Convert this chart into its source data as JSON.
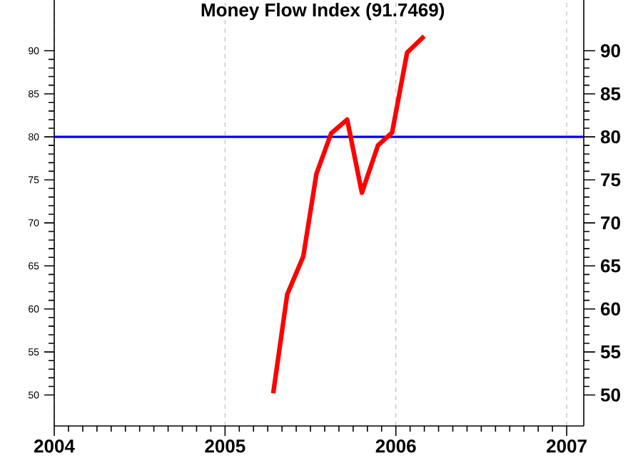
{
  "chart_data": {
    "type": "line",
    "title": "Money Flow Index (91.7469)",
    "x": [
      2005.282,
      2005.364,
      2005.458,
      2005.535,
      2005.621,
      2005.715,
      2005.801,
      2005.895,
      2005.978,
      2006.066,
      2006.166
    ],
    "series": [
      {
        "color": "#ff0000",
        "values": [
          50.2,
          61.7,
          66.1,
          75.7,
          80.4,
          82.0,
          73.5,
          79.0,
          80.5,
          89.8,
          91.7
        ]
      }
    ],
    "xlim": [
      2004,
      2007.1
    ],
    "xticks": [
      2004,
      2005,
      2006,
      2007
    ],
    "ylim": [
      46.4,
      95.9
    ],
    "yticks": [
      50,
      55,
      60,
      65,
      70,
      75,
      80,
      85,
      90
    ],
    "y2lim": [
      46.4,
      95.9
    ],
    "y2ticks": [
      50,
      55,
      60,
      65,
      70,
      75,
      80,
      85,
      90
    ],
    "grid": "x",
    "marker": "none",
    "line_style": "solid",
    "ref_lines": [
      {
        "axis": "y",
        "value": 80,
        "color": "#0000ff"
      }
    ]
  }
}
